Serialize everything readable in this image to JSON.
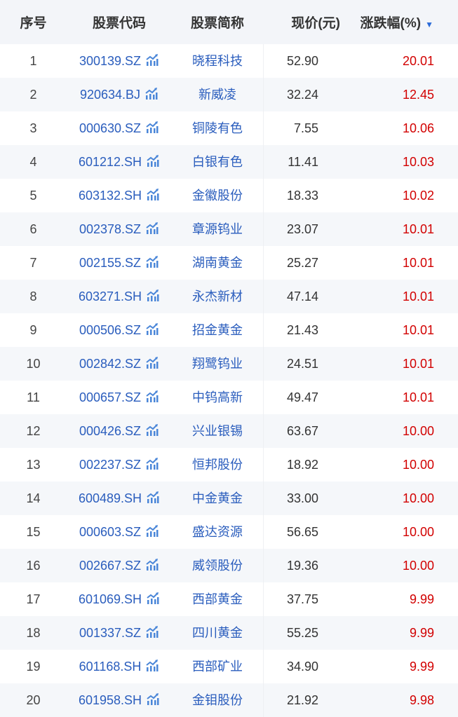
{
  "header": {
    "index": "序号",
    "code": "股票代码",
    "name": "股票简称",
    "price": "现价(元)",
    "change": "涨跌幅(%)",
    "sort_icon": "▼"
  },
  "colors": {
    "link": "#2a5dbd",
    "up": "#d20000",
    "header_bg": "#f3f5f9",
    "stripe": "#f5f7fa"
  },
  "rows": [
    {
      "no": "1",
      "code": "300139.SZ",
      "name": "晓程科技",
      "price": "52.90",
      "change": "20.01"
    },
    {
      "no": "2",
      "code": "920634.BJ",
      "name": "新威凌",
      "price": "32.24",
      "change": "12.45"
    },
    {
      "no": "3",
      "code": "000630.SZ",
      "name": "铜陵有色",
      "price": "7.55",
      "change": "10.06"
    },
    {
      "no": "4",
      "code": "601212.SH",
      "name": "白银有色",
      "price": "11.41",
      "change": "10.03"
    },
    {
      "no": "5",
      "code": "603132.SH",
      "name": "金徽股份",
      "price": "18.33",
      "change": "10.02"
    },
    {
      "no": "6",
      "code": "002378.SZ",
      "name": "章源钨业",
      "price": "23.07",
      "change": "10.01"
    },
    {
      "no": "7",
      "code": "002155.SZ",
      "name": "湖南黄金",
      "price": "25.27",
      "change": "10.01"
    },
    {
      "no": "8",
      "code": "603271.SH",
      "name": "永杰新材",
      "price": "47.14",
      "change": "10.01"
    },
    {
      "no": "9",
      "code": "000506.SZ",
      "name": "招金黄金",
      "price": "21.43",
      "change": "10.01"
    },
    {
      "no": "10",
      "code": "002842.SZ",
      "name": "翔鹭钨业",
      "price": "24.51",
      "change": "10.01"
    },
    {
      "no": "11",
      "code": "000657.SZ",
      "name": "中钨高新",
      "price": "49.47",
      "change": "10.01"
    },
    {
      "no": "12",
      "code": "000426.SZ",
      "name": "兴业银锡",
      "price": "63.67",
      "change": "10.00"
    },
    {
      "no": "13",
      "code": "002237.SZ",
      "name": "恒邦股份",
      "price": "18.92",
      "change": "10.00"
    },
    {
      "no": "14",
      "code": "600489.SH",
      "name": "中金黄金",
      "price": "33.00",
      "change": "10.00"
    },
    {
      "no": "15",
      "code": "000603.SZ",
      "name": "盛达资源",
      "price": "56.65",
      "change": "10.00"
    },
    {
      "no": "16",
      "code": "002667.SZ",
      "name": "威领股份",
      "price": "19.36",
      "change": "10.00"
    },
    {
      "no": "17",
      "code": "601069.SH",
      "name": "西部黄金",
      "price": "37.75",
      "change": "9.99"
    },
    {
      "no": "18",
      "code": "001337.SZ",
      "name": "四川黄金",
      "price": "55.25",
      "change": "9.99"
    },
    {
      "no": "19",
      "code": "601168.SH",
      "name": "西部矿业",
      "price": "34.90",
      "change": "9.99"
    },
    {
      "no": "20",
      "code": "601958.SH",
      "name": "金钼股份",
      "price": "21.92",
      "change": "9.98"
    }
  ]
}
